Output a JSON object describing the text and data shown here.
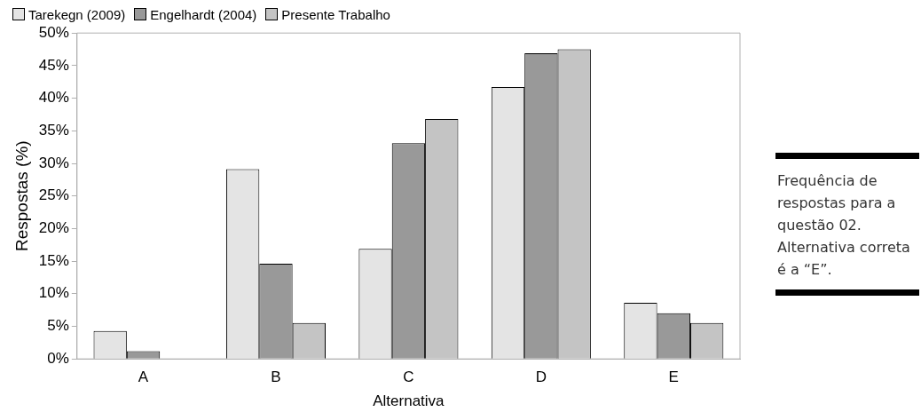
{
  "chart_data": {
    "type": "bar",
    "categories": [
      "A",
      "B",
      "C",
      "D",
      "E"
    ],
    "series": [
      {
        "name": "Tarekegn (2009)",
        "color": "#e4e4e4",
        "values": [
          4.3,
          29.1,
          16.9,
          41.7,
          8.6
        ]
      },
      {
        "name": "Engelhardt (2004)",
        "color": "#999999",
        "values": [
          1.2,
          14.6,
          33.1,
          46.9,
          7.0
        ]
      },
      {
        "name": "Presente Trabalho",
        "color": "#c4c4c4",
        "values": [
          0,
          5.5,
          36.8,
          47.5,
          5.5
        ]
      }
    ],
    "xlabel": "Alternativa",
    "ylabel": "Respostas (%)",
    "ylim": [
      0,
      50
    ],
    "yticks": [
      {
        "value": 0,
        "label": "0%"
      },
      {
        "value": 5,
        "label": "5%"
      },
      {
        "value": 10,
        "label": "10%"
      },
      {
        "value": 15,
        "label": "15%"
      },
      {
        "value": 20,
        "label": "20%"
      },
      {
        "value": 25,
        "label": "25%"
      },
      {
        "value": 30,
        "label": "30%"
      },
      {
        "value": 35,
        "label": "35%"
      },
      {
        "value": 40,
        "label": "40%"
      },
      {
        "value": 45,
        "label": "45%"
      },
      {
        "value": 50,
        "label": "50%"
      }
    ],
    "annotations": [
      "Frequência de respostas para a questão 02. Alternativa correta é a “E”."
    ],
    "grid": false,
    "legend": "top left"
  }
}
